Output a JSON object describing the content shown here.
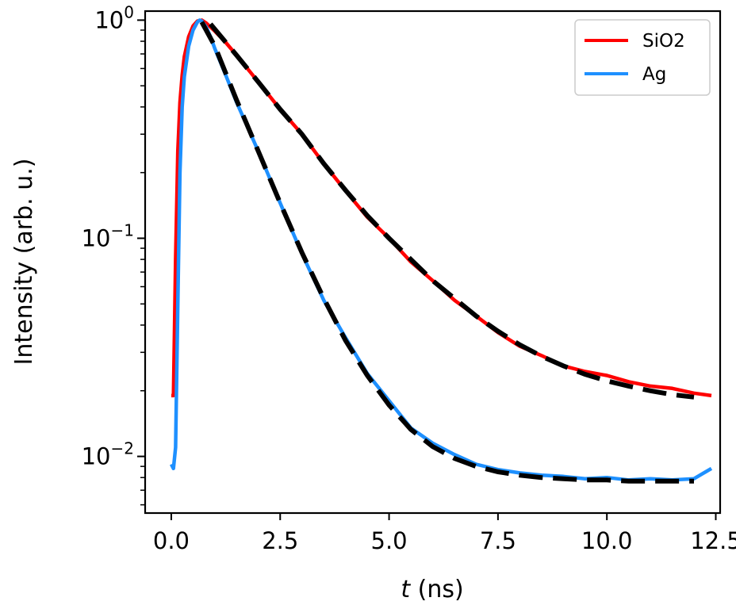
{
  "chart_data": {
    "type": "line",
    "xlabel_italic": "t",
    "xlabel_rest": " (ns)",
    "ylabel": "Intensity (arb. u.)",
    "xlim": [
      -0.6,
      12.6
    ],
    "ylim": [
      0.0055,
      1.1
    ],
    "yscale": "log",
    "x_ticks": [
      0,
      2.5,
      5,
      7.5,
      10,
      12.5
    ],
    "x_tick_labels": [
      "0.0",
      "2.5",
      "5.0",
      "7.5",
      "10.0",
      "12.5"
    ],
    "y_ticks": [
      0.01,
      0.1,
      1
    ],
    "y_tick_labels": [
      {
        "base": "10",
        "exp": "−2"
      },
      {
        "base": "10",
        "exp": "−1"
      },
      {
        "base": "10",
        "exp": "0"
      }
    ],
    "grid": false,
    "legend_position": "top-right",
    "series": [
      {
        "name": "SiO2",
        "color": "#ff0000",
        "x": [
          0.0,
          0.05,
          0.1,
          0.15,
          0.2,
          0.25,
          0.3,
          0.4,
          0.5,
          0.6,
          0.7,
          0.8,
          0.9,
          1.0,
          1.25,
          1.5,
          2.0,
          2.5,
          3.0,
          3.5,
          4.0,
          4.5,
          5.0,
          5.5,
          6.0,
          6.5,
          7.0,
          7.5,
          8.0,
          8.5,
          9.0,
          9.5,
          10.0,
          10.5,
          11.0,
          11.5,
          12.0,
          12.4
        ],
        "y": [
          0.019,
          0.019,
          0.08,
          0.25,
          0.42,
          0.56,
          0.68,
          0.84,
          0.94,
          0.99,
          1.0,
          0.97,
          0.93,
          0.89,
          0.79,
          0.69,
          0.52,
          0.39,
          0.3,
          0.22,
          0.165,
          0.125,
          0.1,
          0.078,
          0.064,
          0.052,
          0.044,
          0.037,
          0.032,
          0.029,
          0.026,
          0.0245,
          0.0235,
          0.022,
          0.021,
          0.0205,
          0.0195,
          0.019
        ]
      },
      {
        "name": "Ag",
        "color": "#1e90ff",
        "x": [
          0.0,
          0.05,
          0.1,
          0.15,
          0.2,
          0.25,
          0.3,
          0.4,
          0.5,
          0.6,
          0.65,
          0.7,
          0.8,
          0.9,
          1.0,
          1.25,
          1.5,
          2.0,
          2.5,
          3.0,
          3.5,
          4.0,
          4.5,
          5.0,
          5.5,
          6.0,
          6.5,
          7.0,
          7.5,
          8.0,
          8.5,
          9.0,
          9.5,
          10.0,
          10.5,
          11.0,
          11.5,
          12.0,
          12.4
        ],
        "y": [
          0.0092,
          0.0088,
          0.011,
          0.05,
          0.2,
          0.4,
          0.55,
          0.76,
          0.9,
          0.98,
          1.0,
          0.99,
          0.93,
          0.84,
          0.74,
          0.56,
          0.42,
          0.25,
          0.145,
          0.085,
          0.052,
          0.035,
          0.024,
          0.018,
          0.0135,
          0.0115,
          0.0102,
          0.0092,
          0.0087,
          0.0084,
          0.0082,
          0.0081,
          0.0079,
          0.008,
          0.0078,
          0.0079,
          0.0078,
          0.0079,
          0.0088
        ]
      }
    ],
    "fits": [
      {
        "color": "#000000",
        "x": [
          0.9,
          1.5,
          2.0,
          2.5,
          3.0,
          3.5,
          4.0,
          4.5,
          5.0,
          5.5,
          6.0,
          6.5,
          7.0,
          7.5,
          8.0,
          8.5,
          9.0,
          9.5,
          10.0,
          10.5,
          11.0,
          11.5,
          12.0
        ],
        "y": [
          0.96,
          0.69,
          0.52,
          0.39,
          0.3,
          0.22,
          0.166,
          0.127,
          0.1,
          0.08,
          0.064,
          0.053,
          0.044,
          0.0375,
          0.0325,
          0.0288,
          0.026,
          0.0238,
          0.0222,
          0.021,
          0.02,
          0.0192,
          0.0187
        ]
      },
      {
        "color": "#000000",
        "x": [
          0.7,
          1.0,
          1.5,
          2.0,
          2.5,
          3.0,
          3.5,
          4.0,
          4.5,
          5.0,
          5.5,
          6.0,
          6.5,
          7.0,
          7.5,
          8.0,
          8.5,
          9.0,
          9.5,
          10.0,
          10.5,
          11.0,
          11.5,
          12.0
        ],
        "y": [
          0.98,
          0.76,
          0.43,
          0.25,
          0.145,
          0.086,
          0.053,
          0.034,
          0.0235,
          0.0172,
          0.0133,
          0.0111,
          0.0098,
          0.009,
          0.0085,
          0.0082,
          0.008,
          0.0079,
          0.0078,
          0.0078,
          0.0077,
          0.0077,
          0.0077,
          0.0077
        ]
      }
    ]
  }
}
